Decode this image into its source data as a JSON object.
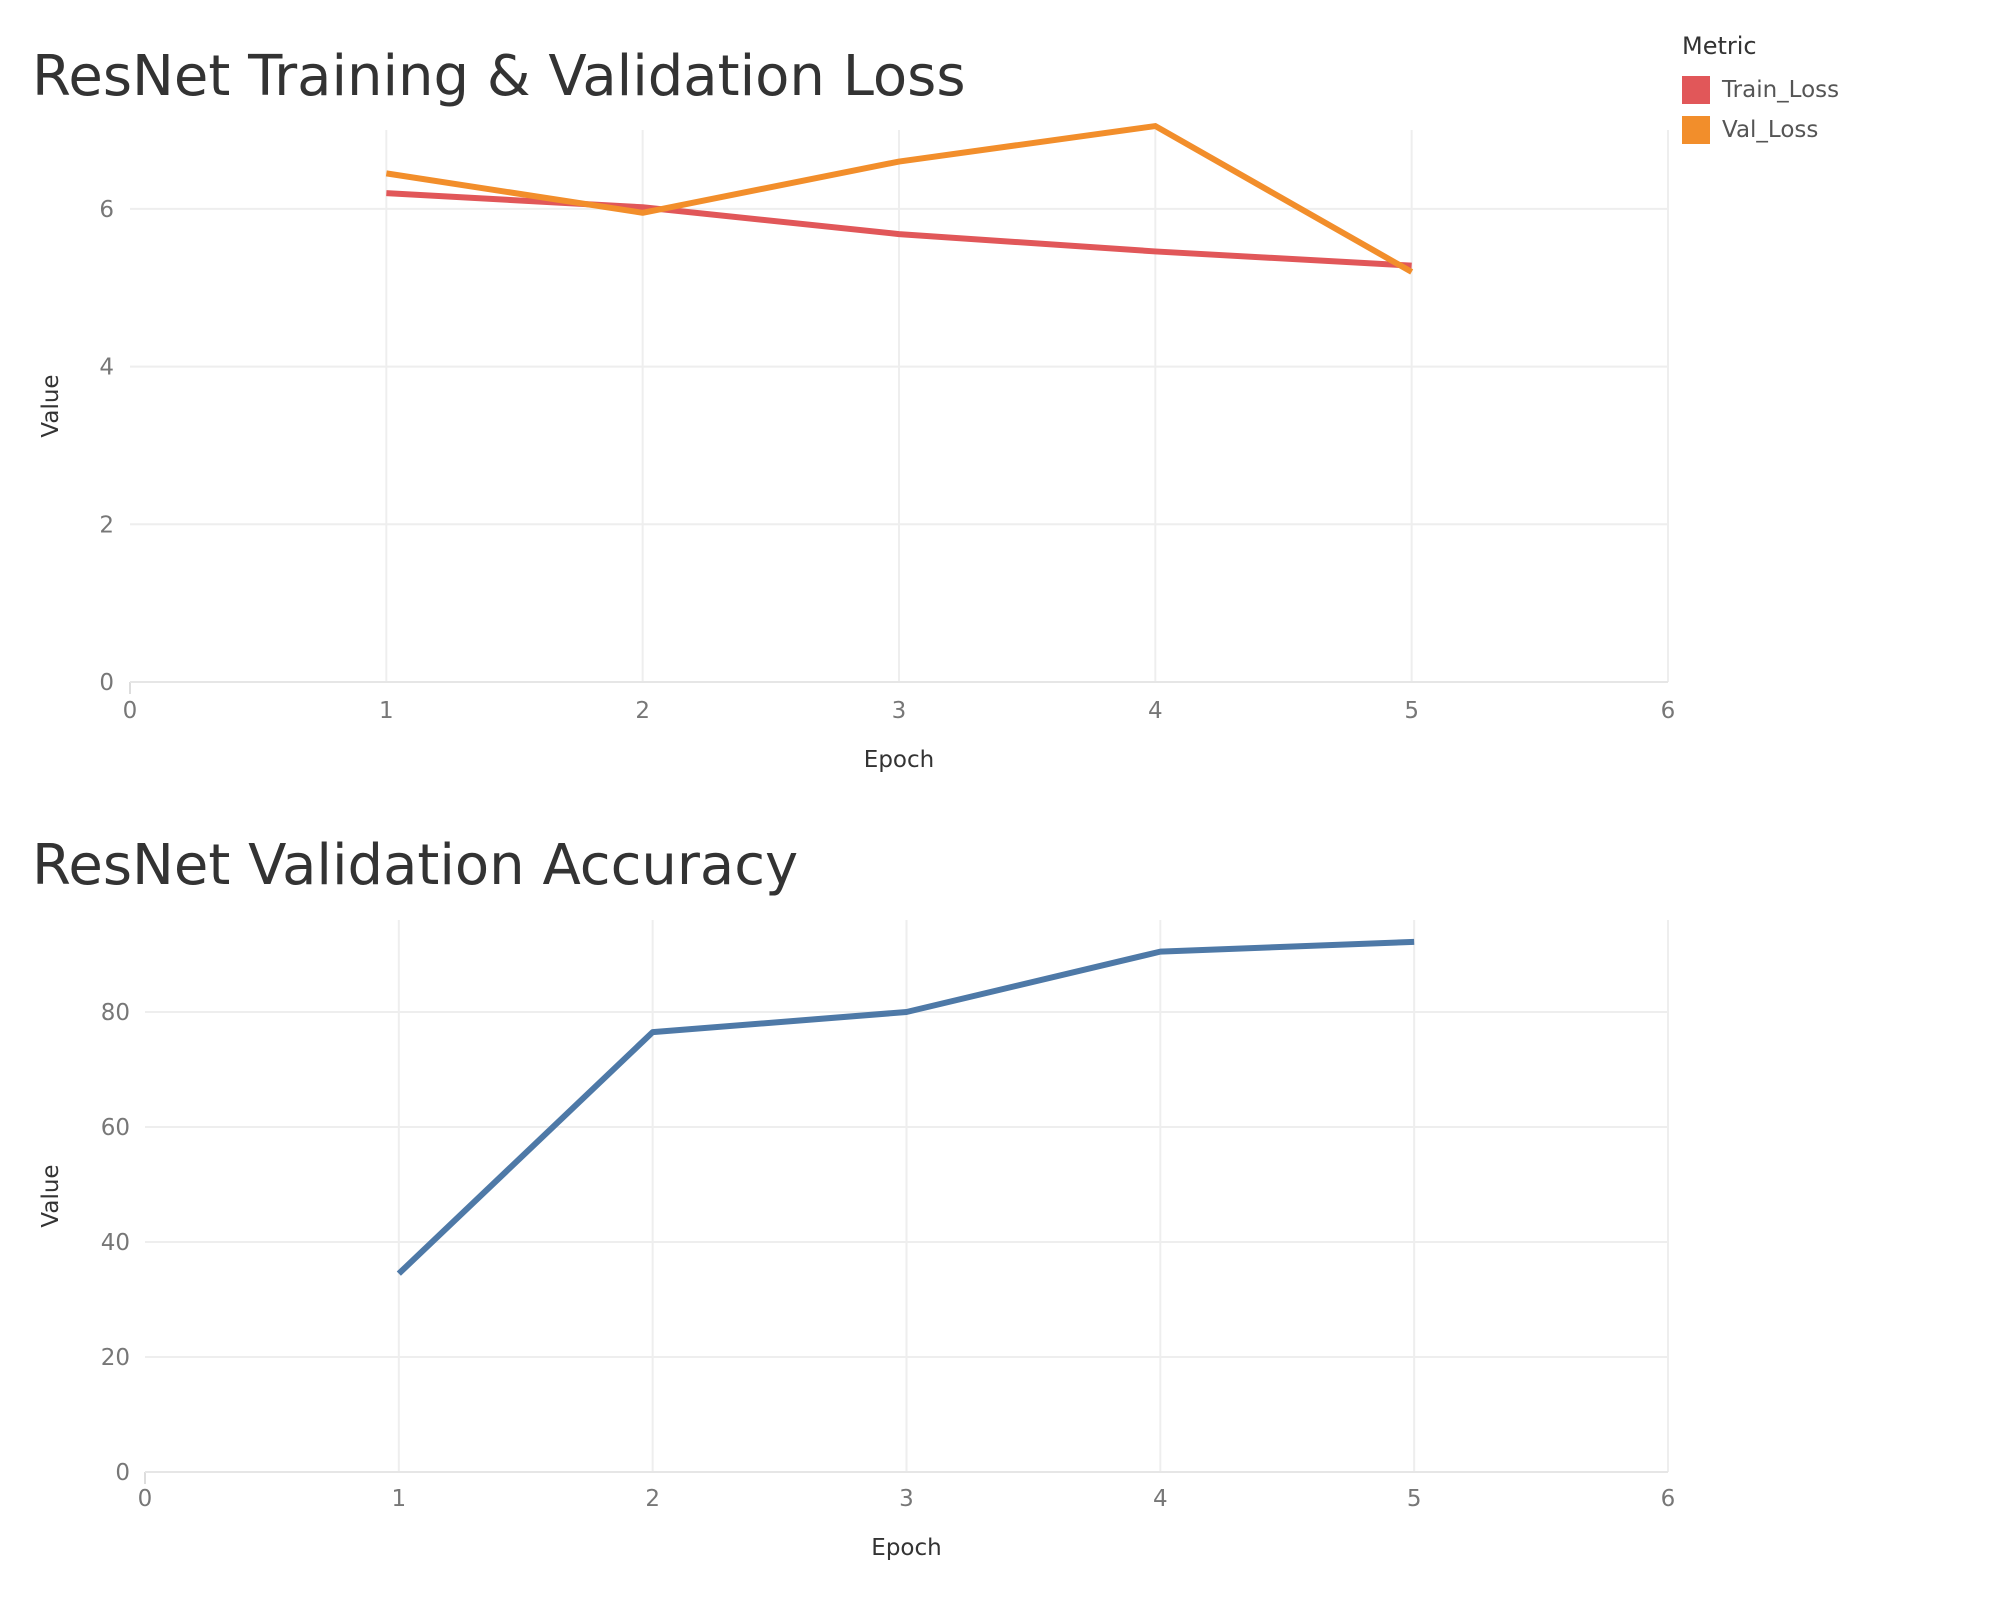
{
  "chart_data": [
    {
      "type": "line",
      "title": "ResNet Training & Validation Loss",
      "xlabel": "Epoch",
      "ylabel": "Value",
      "xlim": [
        0,
        6
      ],
      "ylim": [
        0,
        7
      ],
      "x_ticks": [
        0,
        1,
        2,
        3,
        4,
        5,
        6
      ],
      "y_ticks": [
        0,
        2,
        4,
        6
      ],
      "grid": true,
      "legend": {
        "title": "Metric",
        "placement": "top-right",
        "entries": [
          "Train_Loss",
          "Val_Loss"
        ]
      },
      "series": [
        {
          "name": "Train_Loss",
          "color": "#e15759",
          "x": [
            1,
            2,
            3,
            4,
            5
          ],
          "values": [
            6.2,
            6.02,
            5.68,
            5.46,
            5.28
          ]
        },
        {
          "name": "Val_Loss",
          "color": "#f28e2b",
          "x": [
            1,
            2,
            3,
            4,
            5
          ],
          "values": [
            6.45,
            5.95,
            6.6,
            7.05,
            5.2
          ]
        }
      ]
    },
    {
      "type": "line",
      "title": "ResNet Validation Accuracy",
      "xlabel": "Epoch",
      "ylabel": "Value",
      "xlim": [
        0,
        6
      ],
      "ylim": [
        0,
        96
      ],
      "x_ticks": [
        0,
        1,
        2,
        3,
        4,
        5,
        6
      ],
      "y_ticks": [
        0,
        20,
        40,
        60,
        80
      ],
      "grid": true,
      "series": [
        {
          "color": "#4e79a7",
          "x": [
            1,
            2,
            3,
            4,
            5
          ],
          "values": [
            34.5,
            76.5,
            80.0,
            90.5,
            92.2
          ]
        }
      ]
    }
  ]
}
